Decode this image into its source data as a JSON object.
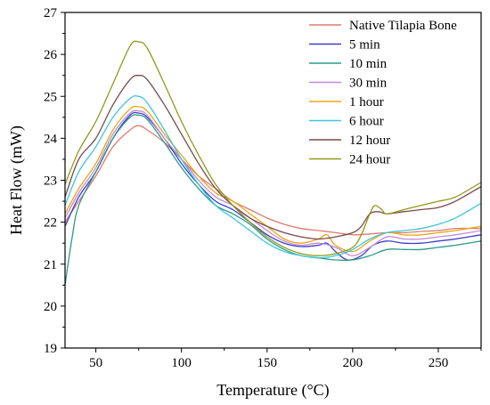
{
  "chart_data": {
    "type": "line",
    "title": "",
    "xlabel": "Temperature (°C)",
    "ylabel": "Heat Flow (mW)",
    "xlim": [
      32,
      275
    ],
    "ylim": [
      19,
      27
    ],
    "x_ticks": [
      50,
      100,
      150,
      200,
      250
    ],
    "y_ticks": [
      19,
      20,
      21,
      22,
      23,
      24,
      25,
      26,
      27
    ],
    "grid": false,
    "legend_position": "top-right",
    "series": [
      {
        "name": "Native Tilapia Bone",
        "color": "#e07a6e",
        "points": [
          [
            32,
            22.0
          ],
          [
            40,
            22.5
          ],
          [
            50,
            23.1
          ],
          [
            60,
            23.8
          ],
          [
            70,
            24.2
          ],
          [
            75,
            24.3
          ],
          [
            80,
            24.2
          ],
          [
            90,
            23.9
          ],
          [
            100,
            23.5
          ],
          [
            110,
            23.1
          ],
          [
            120,
            22.8
          ],
          [
            130,
            22.5
          ],
          [
            140,
            22.3
          ],
          [
            150,
            22.1
          ],
          [
            160,
            21.95
          ],
          [
            170,
            21.85
          ],
          [
            180,
            21.8
          ],
          [
            190,
            21.75
          ],
          [
            200,
            21.7
          ],
          [
            210,
            21.72
          ],
          [
            220,
            21.75
          ],
          [
            230,
            21.75
          ],
          [
            240,
            21.78
          ],
          [
            250,
            21.8
          ],
          [
            260,
            21.85
          ],
          [
            275,
            21.85
          ]
        ]
      },
      {
        "name": "5 min",
        "color": "#3a3fcc",
        "points": [
          [
            32,
            21.9
          ],
          [
            40,
            22.6
          ],
          [
            50,
            23.2
          ],
          [
            60,
            24.0
          ],
          [
            70,
            24.55
          ],
          [
            75,
            24.6
          ],
          [
            80,
            24.5
          ],
          [
            90,
            24.0
          ],
          [
            100,
            23.4
          ],
          [
            110,
            22.9
          ],
          [
            120,
            22.5
          ],
          [
            130,
            22.3
          ],
          [
            140,
            22.0
          ],
          [
            150,
            21.7
          ],
          [
            160,
            21.5
          ],
          [
            170,
            21.42
          ],
          [
            180,
            21.45
          ],
          [
            185,
            21.5
          ],
          [
            190,
            21.3
          ],
          [
            197,
            21.1
          ],
          [
            205,
            21.2
          ],
          [
            212,
            21.45
          ],
          [
            220,
            21.55
          ],
          [
            230,
            21.5
          ],
          [
            240,
            21.5
          ],
          [
            250,
            21.55
          ],
          [
            260,
            21.6
          ],
          [
            275,
            21.7
          ]
        ]
      },
      {
        "name": "10 min",
        "color": "#2a9a8a",
        "points": [
          [
            32,
            20.5
          ],
          [
            36,
            21.6
          ],
          [
            40,
            22.4
          ],
          [
            50,
            23.2
          ],
          [
            60,
            24.0
          ],
          [
            70,
            24.5
          ],
          [
            75,
            24.55
          ],
          [
            80,
            24.45
          ],
          [
            90,
            23.9
          ],
          [
            100,
            23.3
          ],
          [
            110,
            22.8
          ],
          [
            120,
            22.4
          ],
          [
            130,
            22.2
          ],
          [
            140,
            21.95
          ],
          [
            150,
            21.6
          ],
          [
            160,
            21.35
          ],
          [
            170,
            21.2
          ],
          [
            180,
            21.15
          ],
          [
            190,
            21.1
          ],
          [
            200,
            21.1
          ],
          [
            210,
            21.2
          ],
          [
            220,
            21.35
          ],
          [
            230,
            21.35
          ],
          [
            240,
            21.35
          ],
          [
            250,
            21.4
          ],
          [
            260,
            21.45
          ],
          [
            275,
            21.55
          ]
        ]
      },
      {
        "name": "30 min",
        "color": "#c38ad6",
        "points": [
          [
            32,
            22.1
          ],
          [
            40,
            22.7
          ],
          [
            50,
            23.3
          ],
          [
            60,
            24.1
          ],
          [
            70,
            24.6
          ],
          [
            75,
            24.65
          ],
          [
            80,
            24.55
          ],
          [
            90,
            24.0
          ],
          [
            100,
            23.5
          ],
          [
            110,
            23.0
          ],
          [
            120,
            22.6
          ],
          [
            130,
            22.4
          ],
          [
            140,
            22.1
          ],
          [
            150,
            21.8
          ],
          [
            160,
            21.55
          ],
          [
            170,
            21.45
          ],
          [
            180,
            21.5
          ],
          [
            190,
            21.4
          ],
          [
            200,
            21.2
          ],
          [
            210,
            21.4
          ],
          [
            220,
            21.65
          ],
          [
            230,
            21.6
          ],
          [
            240,
            21.6
          ],
          [
            250,
            21.65
          ],
          [
            260,
            21.7
          ],
          [
            275,
            21.8
          ]
        ]
      },
      {
        "name": "1 hour",
        "color": "#e6a817",
        "points": [
          [
            32,
            22.2
          ],
          [
            40,
            22.8
          ],
          [
            50,
            23.4
          ],
          [
            60,
            24.2
          ],
          [
            70,
            24.7
          ],
          [
            75,
            24.75
          ],
          [
            80,
            24.65
          ],
          [
            90,
            24.1
          ],
          [
            100,
            23.6
          ],
          [
            110,
            23.1
          ],
          [
            120,
            22.7
          ],
          [
            130,
            22.5
          ],
          [
            140,
            22.2
          ],
          [
            150,
            21.9
          ],
          [
            160,
            21.6
          ],
          [
            170,
            21.5
          ],
          [
            180,
            21.6
          ],
          [
            185,
            21.7
          ],
          [
            190,
            21.45
          ],
          [
            200,
            21.3
          ],
          [
            210,
            21.55
          ],
          [
            220,
            21.75
          ],
          [
            230,
            21.7
          ],
          [
            240,
            21.7
          ],
          [
            250,
            21.75
          ],
          [
            260,
            21.8
          ],
          [
            275,
            21.9
          ]
        ]
      },
      {
        "name": "6 hour",
        "color": "#3cc6dc",
        "points": [
          [
            32,
            22.4
          ],
          [
            40,
            23.2
          ],
          [
            50,
            23.8
          ],
          [
            60,
            24.5
          ],
          [
            70,
            24.95
          ],
          [
            75,
            25.0
          ],
          [
            80,
            24.85
          ],
          [
            90,
            24.2
          ],
          [
            100,
            23.5
          ],
          [
            110,
            22.9
          ],
          [
            120,
            22.4
          ],
          [
            130,
            22.1
          ],
          [
            140,
            21.8
          ],
          [
            150,
            21.5
          ],
          [
            160,
            21.3
          ],
          [
            170,
            21.2
          ],
          [
            180,
            21.15
          ],
          [
            190,
            21.2
          ],
          [
            200,
            21.35
          ],
          [
            210,
            21.6
          ],
          [
            220,
            21.75
          ],
          [
            230,
            21.8
          ],
          [
            240,
            21.85
          ],
          [
            250,
            21.95
          ],
          [
            260,
            22.1
          ],
          [
            275,
            22.45
          ]
        ]
      },
      {
        "name": "12 hour",
        "color": "#7a4a4a",
        "points": [
          [
            32,
            22.6
          ],
          [
            40,
            23.5
          ],
          [
            50,
            24.0
          ],
          [
            60,
            24.8
          ],
          [
            70,
            25.4
          ],
          [
            75,
            25.5
          ],
          [
            80,
            25.4
          ],
          [
            90,
            24.8
          ],
          [
            100,
            24.1
          ],
          [
            110,
            23.4
          ],
          [
            120,
            22.8
          ],
          [
            130,
            22.4
          ],
          [
            140,
            22.1
          ],
          [
            150,
            21.9
          ],
          [
            160,
            21.75
          ],
          [
            170,
            21.65
          ],
          [
            180,
            21.6
          ],
          [
            190,
            21.65
          ],
          [
            200,
            21.75
          ],
          [
            205,
            21.9
          ],
          [
            210,
            22.2
          ],
          [
            215,
            22.25
          ],
          [
            220,
            22.2
          ],
          [
            230,
            22.25
          ],
          [
            240,
            22.3
          ],
          [
            250,
            22.35
          ],
          [
            260,
            22.5
          ],
          [
            275,
            22.85
          ]
        ]
      },
      {
        "name": "24 hour",
        "color": "#8f9a1a",
        "points": [
          [
            32,
            22.9
          ],
          [
            40,
            23.7
          ],
          [
            50,
            24.4
          ],
          [
            60,
            25.3
          ],
          [
            70,
            26.2
          ],
          [
            75,
            26.3
          ],
          [
            80,
            26.15
          ],
          [
            90,
            25.3
          ],
          [
            100,
            24.4
          ],
          [
            110,
            23.6
          ],
          [
            120,
            22.9
          ],
          [
            130,
            22.4
          ],
          [
            140,
            22.0
          ],
          [
            150,
            21.65
          ],
          [
            160,
            21.4
          ],
          [
            170,
            21.25
          ],
          [
            180,
            21.2
          ],
          [
            190,
            21.25
          ],
          [
            200,
            21.4
          ],
          [
            205,
            21.7
          ],
          [
            210,
            22.2
          ],
          [
            213,
            22.4
          ],
          [
            217,
            22.3
          ],
          [
            220,
            22.2
          ],
          [
            230,
            22.3
          ],
          [
            240,
            22.4
          ],
          [
            250,
            22.5
          ],
          [
            260,
            22.6
          ],
          [
            275,
            22.95
          ]
        ]
      }
    ]
  }
}
